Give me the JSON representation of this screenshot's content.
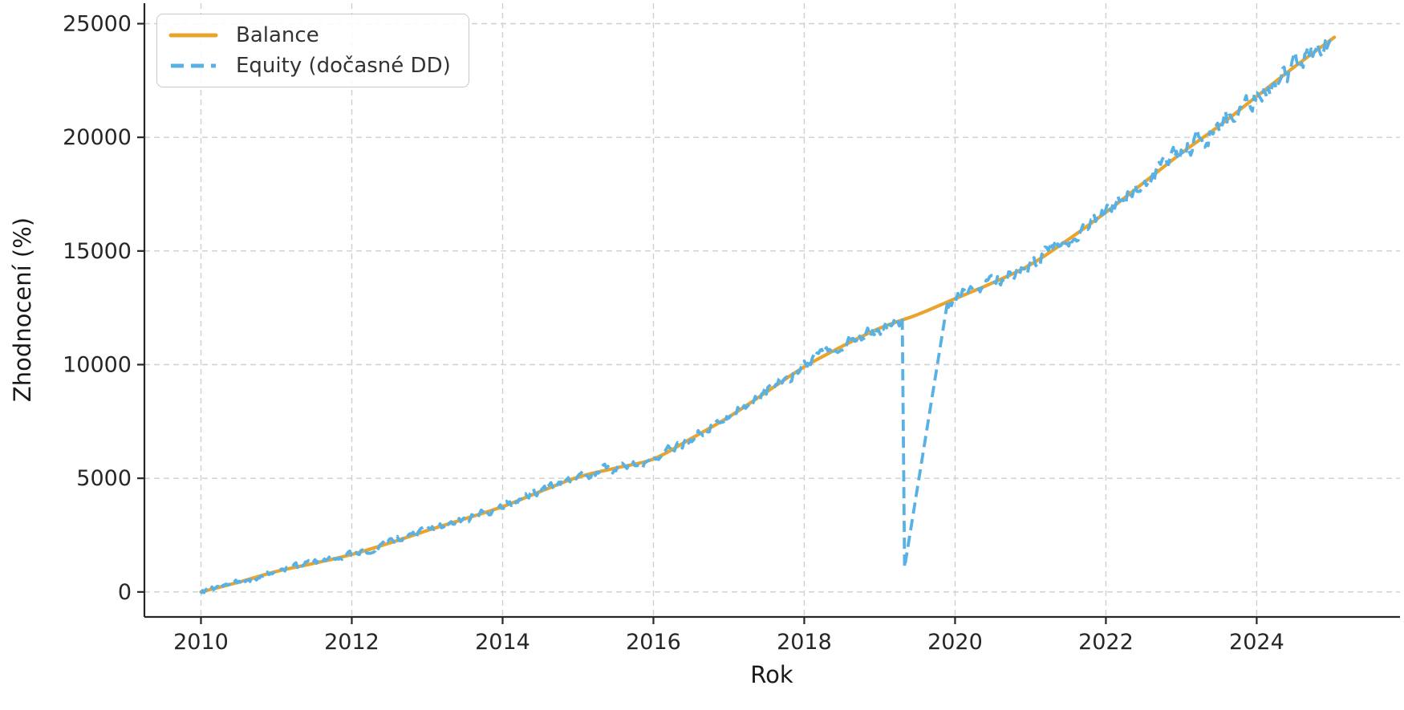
{
  "figure": {
    "background": "#ffffff"
  },
  "chart_data": {
    "type": "line",
    "title": "",
    "xlabel": "Rok",
    "ylabel": "Zhodnocení (%)",
    "xlim": [
      2009.25,
      2025.9
    ],
    "ylim": [
      -1100,
      25900
    ],
    "x_ticks": [
      2010,
      2012,
      2014,
      2016,
      2018,
      2020,
      2022,
      2024
    ],
    "y_ticks": [
      0,
      5000,
      10000,
      15000,
      20000,
      25000
    ],
    "grid": true,
    "grid_color": "#cfcfcf",
    "axis_color": "#262626",
    "legend_position": "upper-left",
    "series": [
      {
        "name": "Balance",
        "style": "solid",
        "color": "#e9a42c",
        "x": [
          2010,
          2010.5,
          2011,
          2011.5,
          2012,
          2012.5,
          2013,
          2013.5,
          2014,
          2014.5,
          2015,
          2015.5,
          2016,
          2016.5,
          2017,
          2017.5,
          2018,
          2018.5,
          2019,
          2019.5,
          2020,
          2020.5,
          2021,
          2021.5,
          2022,
          2022.5,
          2023,
          2023.5,
          2024,
          2024.5,
          2025.03
        ],
        "y": [
          0,
          430,
          900,
          1260,
          1650,
          2150,
          2700,
          3220,
          3750,
          4420,
          5050,
          5450,
          5850,
          6750,
          7700,
          8800,
          9900,
          10800,
          11600,
          12200,
          12900,
          13600,
          14400,
          15500,
          16700,
          18000,
          19300,
          20500,
          21800,
          23100,
          24400
        ]
      },
      {
        "name": "Equity (dočasné DD)",
        "style": "dashed",
        "color": "#58b1e5",
        "derived_from": "Balance",
        "noise_base": 120,
        "noise_scale": 0.011,
        "noise_seed": 9,
        "sample_step_years": 0.021,
        "drawdown": {
          "start_x": 2019.3,
          "bottom_x": 2019.33,
          "bottom_y": 1080,
          "end_x": 2019.9
        }
      }
    ]
  }
}
